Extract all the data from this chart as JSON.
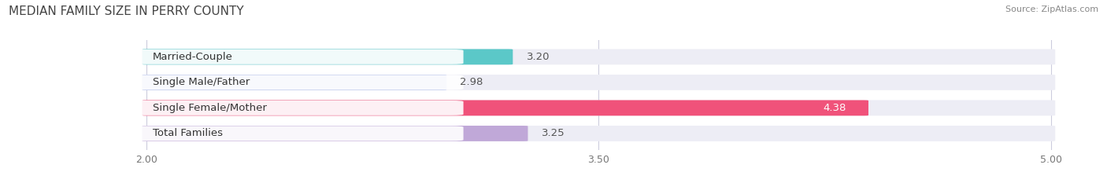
{
  "title": "MEDIAN FAMILY SIZE IN PERRY COUNTY",
  "source": "Source: ZipAtlas.com",
  "categories": [
    "Married-Couple",
    "Single Male/Father",
    "Single Female/Mother",
    "Total Families"
  ],
  "values": [
    3.2,
    2.98,
    4.38,
    3.25
  ],
  "bar_colors": [
    "#5bc8c8",
    "#aab8e8",
    "#f0527a",
    "#c0a8d8"
  ],
  "xlim": [
    1.55,
    5.15
  ],
  "xdata_min": 2.0,
  "xdata_max": 5.0,
  "xticks": [
    2.0,
    3.5,
    5.0
  ],
  "xtick_labels": [
    "2.00",
    "3.50",
    "5.00"
  ],
  "bar_height": 0.58,
  "label_fontsize": 9.5,
  "title_fontsize": 11,
  "value_color_default": "#555555",
  "value_color_pink": "#ffffff",
  "background_color": "#ffffff",
  "bar_background_color": "#ededf5"
}
